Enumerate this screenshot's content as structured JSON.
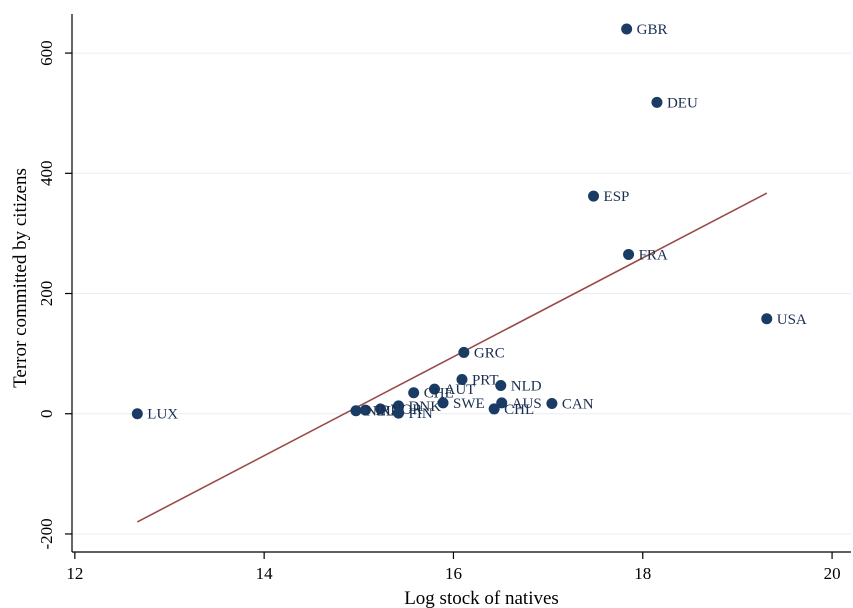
{
  "chart_data": {
    "type": "scatter",
    "title": "",
    "xlabel": "Log stock of natives",
    "ylabel": "Terror committed by citizens",
    "xlim": [
      11.97,
      20.2
    ],
    "ylim": [
      -230,
      665
    ],
    "xticks": [
      12,
      14,
      16,
      18,
      20
    ],
    "yticks": [
      -200,
      0,
      200,
      400,
      600
    ],
    "grid": true,
    "point_color": "#1a3b63",
    "fit_line_color": "#9b4a4a",
    "points": [
      {
        "label": "GBR",
        "x": 17.83,
        "y": 640
      },
      {
        "label": "DEU",
        "x": 18.15,
        "y": 518
      },
      {
        "label": "ESP",
        "x": 17.48,
        "y": 362
      },
      {
        "label": "FRA",
        "x": 17.85,
        "y": 265
      },
      {
        "label": "USA",
        "x": 19.31,
        "y": 158
      },
      {
        "label": "GRC",
        "x": 16.11,
        "y": 102
      },
      {
        "label": "PRT",
        "x": 16.09,
        "y": 57
      },
      {
        "label": "NLD",
        "x": 16.5,
        "y": 47
      },
      {
        "label": "AUT",
        "x": 15.8,
        "y": 41
      },
      {
        "label": "CHE",
        "x": 15.58,
        "y": 35
      },
      {
        "label": "SWE",
        "x": 15.89,
        "y": 18
      },
      {
        "label": "AUS",
        "x": 16.51,
        "y": 18
      },
      {
        "label": "CAN",
        "x": 17.04,
        "y": 17
      },
      {
        "label": "DNK",
        "x": 15.42,
        "y": 13
      },
      {
        "label": "CHL",
        "x": 16.43,
        "y": 8
      },
      {
        "label": "NOR",
        "x": 15.23,
        "y": 8
      },
      {
        "label": "IRL",
        "x": 15.07,
        "y": 6
      },
      {
        "label": "NZL",
        "x": 14.97,
        "y": 5
      },
      {
        "label": "FIN",
        "x": 15.42,
        "y": 1
      },
      {
        "label": "LUX",
        "x": 12.66,
        "y": 0
      }
    ],
    "fit_line": {
      "x": [
        12.66,
        19.31
      ],
      "y": [
        -180,
        367
      ]
    }
  }
}
